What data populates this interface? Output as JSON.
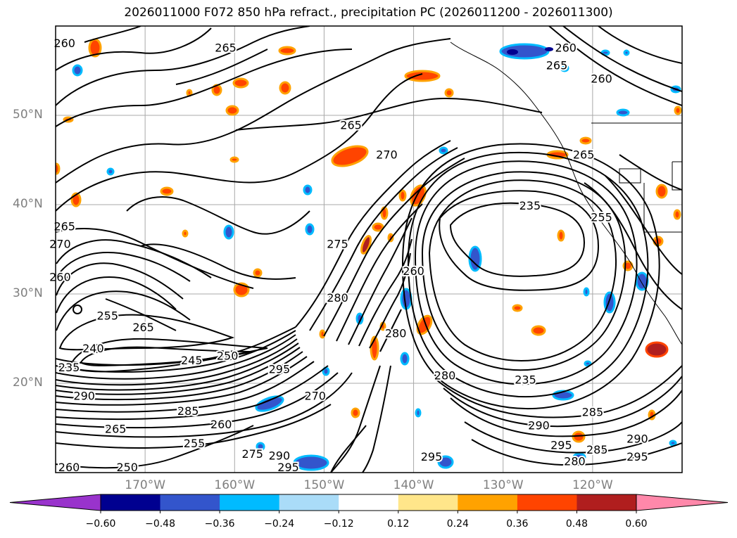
{
  "chart_data": {
    "type": "heatmap",
    "title": "2026011000 F072 850 hPa refract., precipitation PC (2026011200 - 2026011300)",
    "x_axis": {
      "label": "",
      "range": [
        -180,
        -110
      ],
      "ticks": [
        -170,
        -160,
        -150,
        -140,
        -130,
        -120
      ],
      "tick_labels": [
        "170°W",
        "160°W",
        "150°W",
        "140°W",
        "130°W",
        "120°W"
      ]
    },
    "y_axis": {
      "label": "",
      "range": [
        10,
        60
      ],
      "ticks": [
        20,
        30,
        40,
        50
      ],
      "tick_labels": [
        "20°N",
        "30°N",
        "40°N",
        "50°N"
      ]
    },
    "grid": true,
    "contour_labels": [
      {
        "text": "260",
        "lon": -179,
        "lat": 58
      },
      {
        "text": "265",
        "lon": -161,
        "lat": 57.5
      },
      {
        "text": "260",
        "lon": -123,
        "lat": 57.5
      },
      {
        "text": "265",
        "lon": -124,
        "lat": 55.5
      },
      {
        "text": "260",
        "lon": -119,
        "lat": 54
      },
      {
        "text": "265",
        "lon": -147,
        "lat": 48.8
      },
      {
        "text": "270",
        "lon": -143,
        "lat": 45.5
      },
      {
        "text": "265",
        "lon": -121,
        "lat": 45.5
      },
      {
        "text": "235",
        "lon": -127,
        "lat": 39.8
      },
      {
        "text": "255",
        "lon": -119,
        "lat": 38.5
      },
      {
        "text": "265",
        "lon": -179,
        "lat": 37.5
      },
      {
        "text": "270",
        "lon": -179.5,
        "lat": 35.5
      },
      {
        "text": "275",
        "lon": -148.5,
        "lat": 35.5
      },
      {
        "text": "260",
        "lon": -179.5,
        "lat": 31.8
      },
      {
        "text": "260",
        "lon": -140,
        "lat": 32.5
      },
      {
        "text": "280",
        "lon": -148.5,
        "lat": 29.5
      },
      {
        "text": "255",
        "lon": -174.2,
        "lat": 27.5
      },
      {
        "text": "265",
        "lon": -170.2,
        "lat": 26.2
      },
      {
        "text": "280",
        "lon": -142,
        "lat": 25.5
      },
      {
        "text": "240",
        "lon": -175.8,
        "lat": 23.8
      },
      {
        "text": "250",
        "lon": -160.8,
        "lat": 23
      },
      {
        "text": "245",
        "lon": -164.8,
        "lat": 22.5
      },
      {
        "text": "235",
        "lon": -178.5,
        "lat": 21.7
      },
      {
        "text": "295",
        "lon": -155,
        "lat": 21.5
      },
      {
        "text": "280",
        "lon": -136.5,
        "lat": 20.8
      },
      {
        "text": "235",
        "lon": -127.5,
        "lat": 20.3
      },
      {
        "text": "290",
        "lon": -176.8,
        "lat": 18.5
      },
      {
        "text": "270",
        "lon": -151,
        "lat": 18.5
      },
      {
        "text": "285",
        "lon": -165.2,
        "lat": 16.8
      },
      {
        "text": "285",
        "lon": -120,
        "lat": 16.7
      },
      {
        "text": "265",
        "lon": -173.3,
        "lat": 14.8
      },
      {
        "text": "260",
        "lon": -161.5,
        "lat": 15.3
      },
      {
        "text": "290",
        "lon": -126,
        "lat": 15.2
      },
      {
        "text": "255",
        "lon": -164.5,
        "lat": 13.2
      },
      {
        "text": "295",
        "lon": -123.5,
        "lat": 13
      },
      {
        "text": "290",
        "lon": -115,
        "lat": 13.7
      },
      {
        "text": "285",
        "lon": -119.5,
        "lat": 12.5
      },
      {
        "text": "275",
        "lon": -158,
        "lat": 12
      },
      {
        "text": "290",
        "lon": -155,
        "lat": 11.8
      },
      {
        "text": "295",
        "lon": -138,
        "lat": 11.7
      },
      {
        "text": "295",
        "lon": -115,
        "lat": 11.7
      },
      {
        "text": "280",
        "lon": -122,
        "lat": 11.2
      },
      {
        "text": "260",
        "lon": -178.5,
        "lat": 10.5
      },
      {
        "text": "250",
        "lon": -172,
        "lat": 10.5
      },
      {
        "text": "295",
        "lon": -154,
        "lat": 10.5
      }
    ],
    "colorbar": {
      "ticks": [
        "−0.60",
        "−0.48",
        "−0.36",
        "−0.24",
        "−0.12",
        "0.12",
        "0.24",
        "0.36",
        "0.48",
        "0.60"
      ],
      "colors": [
        "#9933cc",
        "#000090",
        "#3355cc",
        "#00bbff",
        "#aadcf8",
        "#ffffff",
        "#ffe68a",
        "#ffa200",
        "#ff4400",
        "#b01e1e",
        "#ff88aa"
      ]
    }
  }
}
